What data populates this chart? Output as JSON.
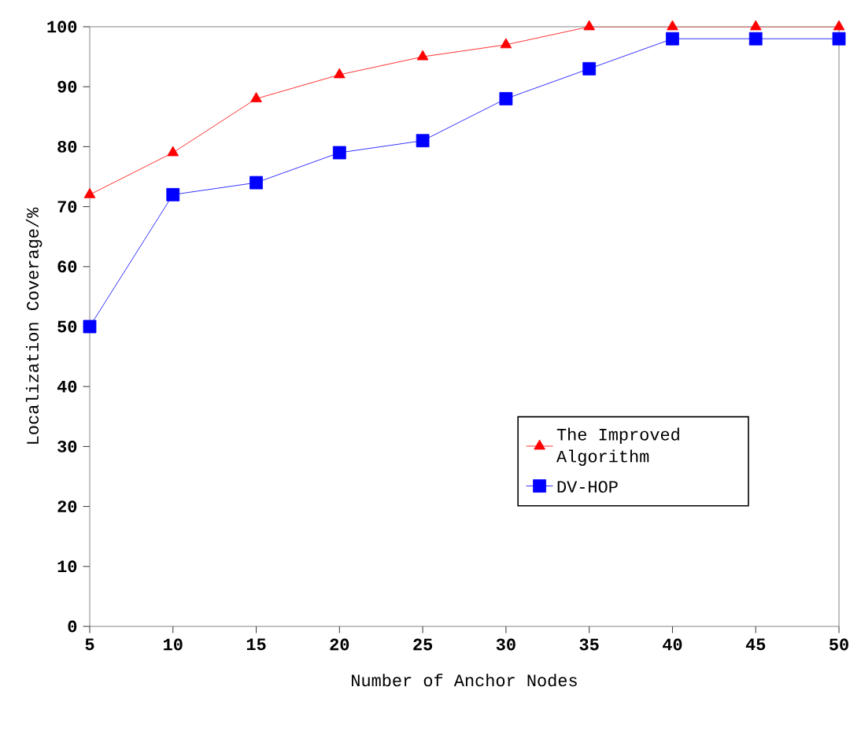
{
  "chart_data": {
    "type": "line",
    "xlabel": "Number of Anchor Nodes",
    "ylabel": "Localization Coverage/%",
    "categories": [
      "5",
      "10",
      "15",
      "20",
      "25",
      "30",
      "35",
      "40",
      "45",
      "50"
    ],
    "series": [
      {
        "name": "The Improved Algorithm",
        "color": "#ff0000",
        "marker": "triangle",
        "values": [
          72,
          79,
          88,
          92,
          95,
          97,
          100,
          100,
          100,
          100
        ]
      },
      {
        "name": "DV-HOP",
        "color": "#0000ff",
        "marker": "square",
        "values": [
          50,
          72,
          74,
          79,
          81,
          88,
          93,
          98,
          98,
          98
        ]
      }
    ],
    "ylim": [
      0,
      100
    ],
    "yticks": [
      0,
      10,
      20,
      30,
      40,
      50,
      60,
      70,
      80,
      90,
      100
    ],
    "grid": false,
    "legend": "bottom right"
  }
}
